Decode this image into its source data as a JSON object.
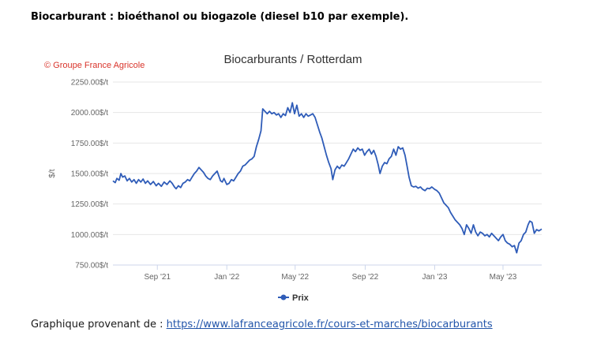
{
  "document": {
    "heading": "Biocarburant : bioéthanol ou biogazole (diesel b10 par exemple).",
    "source_prefix": "Graphique provenant de : ",
    "source_link": "https://www.lafranceagricole.fr/cours-et-marches/biocarburants"
  },
  "chart_data": {
    "type": "line",
    "title": "Biocarburants / Rotterdam",
    "credit": "© Groupe France Agricole",
    "ylabel": "$/t",
    "ylim": [
      750,
      2250
    ],
    "xlim": [
      "2021-06-15",
      "2023-07-08"
    ],
    "y_ticks": [
      {
        "value": 750,
        "label": "750.00$/t"
      },
      {
        "value": 1000,
        "label": "1000.00$/t"
      },
      {
        "value": 1250,
        "label": "1250.00$/t"
      },
      {
        "value": 1500,
        "label": "1500.00$/t"
      },
      {
        "value": 1750,
        "label": "1750.00$/t"
      },
      {
        "value": 2000,
        "label": "2000.00$/t"
      },
      {
        "value": 2250,
        "label": "2250.00$/t"
      }
    ],
    "x_ticks": [
      {
        "date": "2021-09-01",
        "label": "Sep '21"
      },
      {
        "date": "2022-01-01",
        "label": "Jan '22"
      },
      {
        "date": "2022-05-01",
        "label": "May '22"
      },
      {
        "date": "2022-09-01",
        "label": "Sep '22"
      },
      {
        "date": "2023-01-01",
        "label": "Jan '23"
      },
      {
        "date": "2023-05-01",
        "label": "May '23"
      }
    ],
    "grid": true,
    "legend_position": "bottom",
    "series_color": "#2f5cb8",
    "series": [
      {
        "name": "Prix",
        "points": [
          [
            "2021-06-15",
            1440
          ],
          [
            "2021-06-19",
            1425
          ],
          [
            "2021-06-22",
            1460
          ],
          [
            "2021-06-26",
            1445
          ],
          [
            "2021-06-29",
            1500
          ],
          [
            "2021-07-02",
            1470
          ],
          [
            "2021-07-06",
            1480
          ],
          [
            "2021-07-10",
            1440
          ],
          [
            "2021-07-14",
            1460
          ],
          [
            "2021-07-18",
            1430
          ],
          [
            "2021-07-22",
            1450
          ],
          [
            "2021-07-26",
            1420
          ],
          [
            "2021-07-30",
            1450
          ],
          [
            "2021-08-03",
            1430
          ],
          [
            "2021-08-07",
            1455
          ],
          [
            "2021-08-11",
            1420
          ],
          [
            "2021-08-15",
            1440
          ],
          [
            "2021-08-20",
            1410
          ],
          [
            "2021-08-25",
            1435
          ],
          [
            "2021-08-30",
            1400
          ],
          [
            "2021-09-03",
            1420
          ],
          [
            "2021-09-08",
            1395
          ],
          [
            "2021-09-13",
            1430
          ],
          [
            "2021-09-18",
            1410
          ],
          [
            "2021-09-23",
            1440
          ],
          [
            "2021-09-27",
            1420
          ],
          [
            "2021-10-01",
            1390
          ],
          [
            "2021-10-04",
            1375
          ],
          [
            "2021-10-08",
            1400
          ],
          [
            "2021-10-12",
            1385
          ],
          [
            "2021-10-16",
            1420
          ],
          [
            "2021-10-20",
            1430
          ],
          [
            "2021-10-24",
            1450
          ],
          [
            "2021-10-28",
            1440
          ],
          [
            "2021-11-01",
            1470
          ],
          [
            "2021-11-05",
            1500
          ],
          [
            "2021-11-09",
            1520
          ],
          [
            "2021-11-13",
            1550
          ],
          [
            "2021-11-17",
            1530
          ],
          [
            "2021-11-21",
            1510
          ],
          [
            "2021-11-25",
            1480
          ],
          [
            "2021-11-29",
            1460
          ],
          [
            "2021-12-03",
            1450
          ],
          [
            "2021-12-07",
            1480
          ],
          [
            "2021-12-11",
            1500
          ],
          [
            "2021-12-15",
            1520
          ],
          [
            "2021-12-18",
            1480
          ],
          [
            "2021-12-21",
            1440
          ],
          [
            "2021-12-24",
            1430
          ],
          [
            "2021-12-27",
            1460
          ],
          [
            "2022-01-01",
            1410
          ],
          [
            "2022-01-05",
            1420
          ],
          [
            "2022-01-09",
            1450
          ],
          [
            "2022-01-13",
            1440
          ],
          [
            "2022-01-17",
            1470
          ],
          [
            "2022-01-21",
            1500
          ],
          [
            "2022-01-25",
            1520
          ],
          [
            "2022-01-29",
            1560
          ],
          [
            "2022-02-02",
            1570
          ],
          [
            "2022-02-06",
            1590
          ],
          [
            "2022-02-10",
            1610
          ],
          [
            "2022-02-14",
            1620
          ],
          [
            "2022-02-18",
            1640
          ],
          [
            "2022-02-22",
            1720
          ],
          [
            "2022-02-26",
            1780
          ],
          [
            "2022-03-02",
            1850
          ],
          [
            "2022-03-05",
            2030
          ],
          [
            "2022-03-09",
            2010
          ],
          [
            "2022-03-13",
            1990
          ],
          [
            "2022-03-17",
            2010
          ],
          [
            "2022-03-21",
            1990
          ],
          [
            "2022-03-25",
            2000
          ],
          [
            "2022-03-29",
            1980
          ],
          [
            "2022-04-02",
            1990
          ],
          [
            "2022-04-06",
            1960
          ],
          [
            "2022-04-10",
            1990
          ],
          [
            "2022-04-14",
            1975
          ],
          [
            "2022-04-18",
            2040
          ],
          [
            "2022-04-22",
            2000
          ],
          [
            "2022-04-26",
            2080
          ],
          [
            "2022-04-30",
            1990
          ],
          [
            "2022-05-04",
            2060
          ],
          [
            "2022-05-08",
            1970
          ],
          [
            "2022-05-12",
            1990
          ],
          [
            "2022-05-16",
            1960
          ],
          [
            "2022-05-20",
            1990
          ],
          [
            "2022-05-24",
            1970
          ],
          [
            "2022-05-28",
            1980
          ],
          [
            "2022-06-01",
            1990
          ],
          [
            "2022-06-05",
            1960
          ],
          [
            "2022-06-09",
            1900
          ],
          [
            "2022-06-13",
            1840
          ],
          [
            "2022-06-17",
            1790
          ],
          [
            "2022-06-21",
            1720
          ],
          [
            "2022-06-25",
            1650
          ],
          [
            "2022-06-29",
            1590
          ],
          [
            "2022-07-03",
            1540
          ],
          [
            "2022-07-06",
            1450
          ],
          [
            "2022-07-10",
            1530
          ],
          [
            "2022-07-14",
            1560
          ],
          [
            "2022-07-18",
            1540
          ],
          [
            "2022-07-22",
            1570
          ],
          [
            "2022-07-26",
            1560
          ],
          [
            "2022-07-30",
            1590
          ],
          [
            "2022-08-03",
            1620
          ],
          [
            "2022-08-07",
            1660
          ],
          [
            "2022-08-11",
            1700
          ],
          [
            "2022-08-15",
            1680
          ],
          [
            "2022-08-19",
            1710
          ],
          [
            "2022-08-23",
            1690
          ],
          [
            "2022-08-27",
            1700
          ],
          [
            "2022-08-31",
            1650
          ],
          [
            "2022-09-04",
            1680
          ],
          [
            "2022-09-08",
            1700
          ],
          [
            "2022-09-12",
            1660
          ],
          [
            "2022-09-16",
            1690
          ],
          [
            "2022-09-20",
            1640
          ],
          [
            "2022-09-24",
            1570
          ],
          [
            "2022-09-27",
            1500
          ],
          [
            "2022-10-01",
            1560
          ],
          [
            "2022-10-05",
            1590
          ],
          [
            "2022-10-09",
            1580
          ],
          [
            "2022-10-13",
            1620
          ],
          [
            "2022-10-17",
            1640
          ],
          [
            "2022-10-21",
            1700
          ],
          [
            "2022-10-25",
            1650
          ],
          [
            "2022-10-29",
            1720
          ],
          [
            "2022-11-02",
            1700
          ],
          [
            "2022-11-06",
            1710
          ],
          [
            "2022-11-10",
            1650
          ],
          [
            "2022-11-14",
            1550
          ],
          [
            "2022-11-17",
            1470
          ],
          [
            "2022-11-21",
            1400
          ],
          [
            "2022-11-25",
            1390
          ],
          [
            "2022-11-29",
            1395
          ],
          [
            "2022-12-03",
            1380
          ],
          [
            "2022-12-07",
            1390
          ],
          [
            "2022-12-11",
            1370
          ],
          [
            "2022-12-15",
            1360
          ],
          [
            "2022-12-19",
            1380
          ],
          [
            "2022-12-23",
            1375
          ],
          [
            "2022-12-27",
            1390
          ],
          [
            "2023-01-01",
            1370
          ],
          [
            "2023-01-05",
            1360
          ],
          [
            "2023-01-09",
            1340
          ],
          [
            "2023-01-13",
            1300
          ],
          [
            "2023-01-17",
            1260
          ],
          [
            "2023-01-21",
            1240
          ],
          [
            "2023-01-25",
            1220
          ],
          [
            "2023-01-29",
            1180
          ],
          [
            "2023-02-02",
            1150
          ],
          [
            "2023-02-06",
            1120
          ],
          [
            "2023-02-10",
            1100
          ],
          [
            "2023-02-14",
            1080
          ],
          [
            "2023-02-18",
            1050
          ],
          [
            "2023-02-22",
            1000
          ],
          [
            "2023-02-26",
            1080
          ],
          [
            "2023-03-02",
            1050
          ],
          [
            "2023-03-06",
            1010
          ],
          [
            "2023-03-10",
            1080
          ],
          [
            "2023-03-14",
            1020
          ],
          [
            "2023-03-18",
            990
          ],
          [
            "2023-03-22",
            1020
          ],
          [
            "2023-03-26",
            1010
          ],
          [
            "2023-03-30",
            990
          ],
          [
            "2023-04-03",
            1000
          ],
          [
            "2023-04-07",
            980
          ],
          [
            "2023-04-11",
            1010
          ],
          [
            "2023-04-15",
            990
          ],
          [
            "2023-04-19",
            970
          ],
          [
            "2023-04-23",
            950
          ],
          [
            "2023-04-27",
            980
          ],
          [
            "2023-05-01",
            1000
          ],
          [
            "2023-05-05",
            950
          ],
          [
            "2023-05-09",
            930
          ],
          [
            "2023-05-13",
            920
          ],
          [
            "2023-05-17",
            900
          ],
          [
            "2023-05-21",
            910
          ],
          [
            "2023-05-25",
            850
          ],
          [
            "2023-05-29",
            930
          ],
          [
            "2023-06-02",
            950
          ],
          [
            "2023-06-06",
            1000
          ],
          [
            "2023-06-10",
            1020
          ],
          [
            "2023-06-14",
            1080
          ],
          [
            "2023-06-17",
            1110
          ],
          [
            "2023-06-21",
            1100
          ],
          [
            "2023-06-25",
            1010
          ],
          [
            "2023-06-29",
            1040
          ],
          [
            "2023-07-03",
            1030
          ],
          [
            "2023-07-08",
            1045
          ]
        ]
      }
    ]
  }
}
